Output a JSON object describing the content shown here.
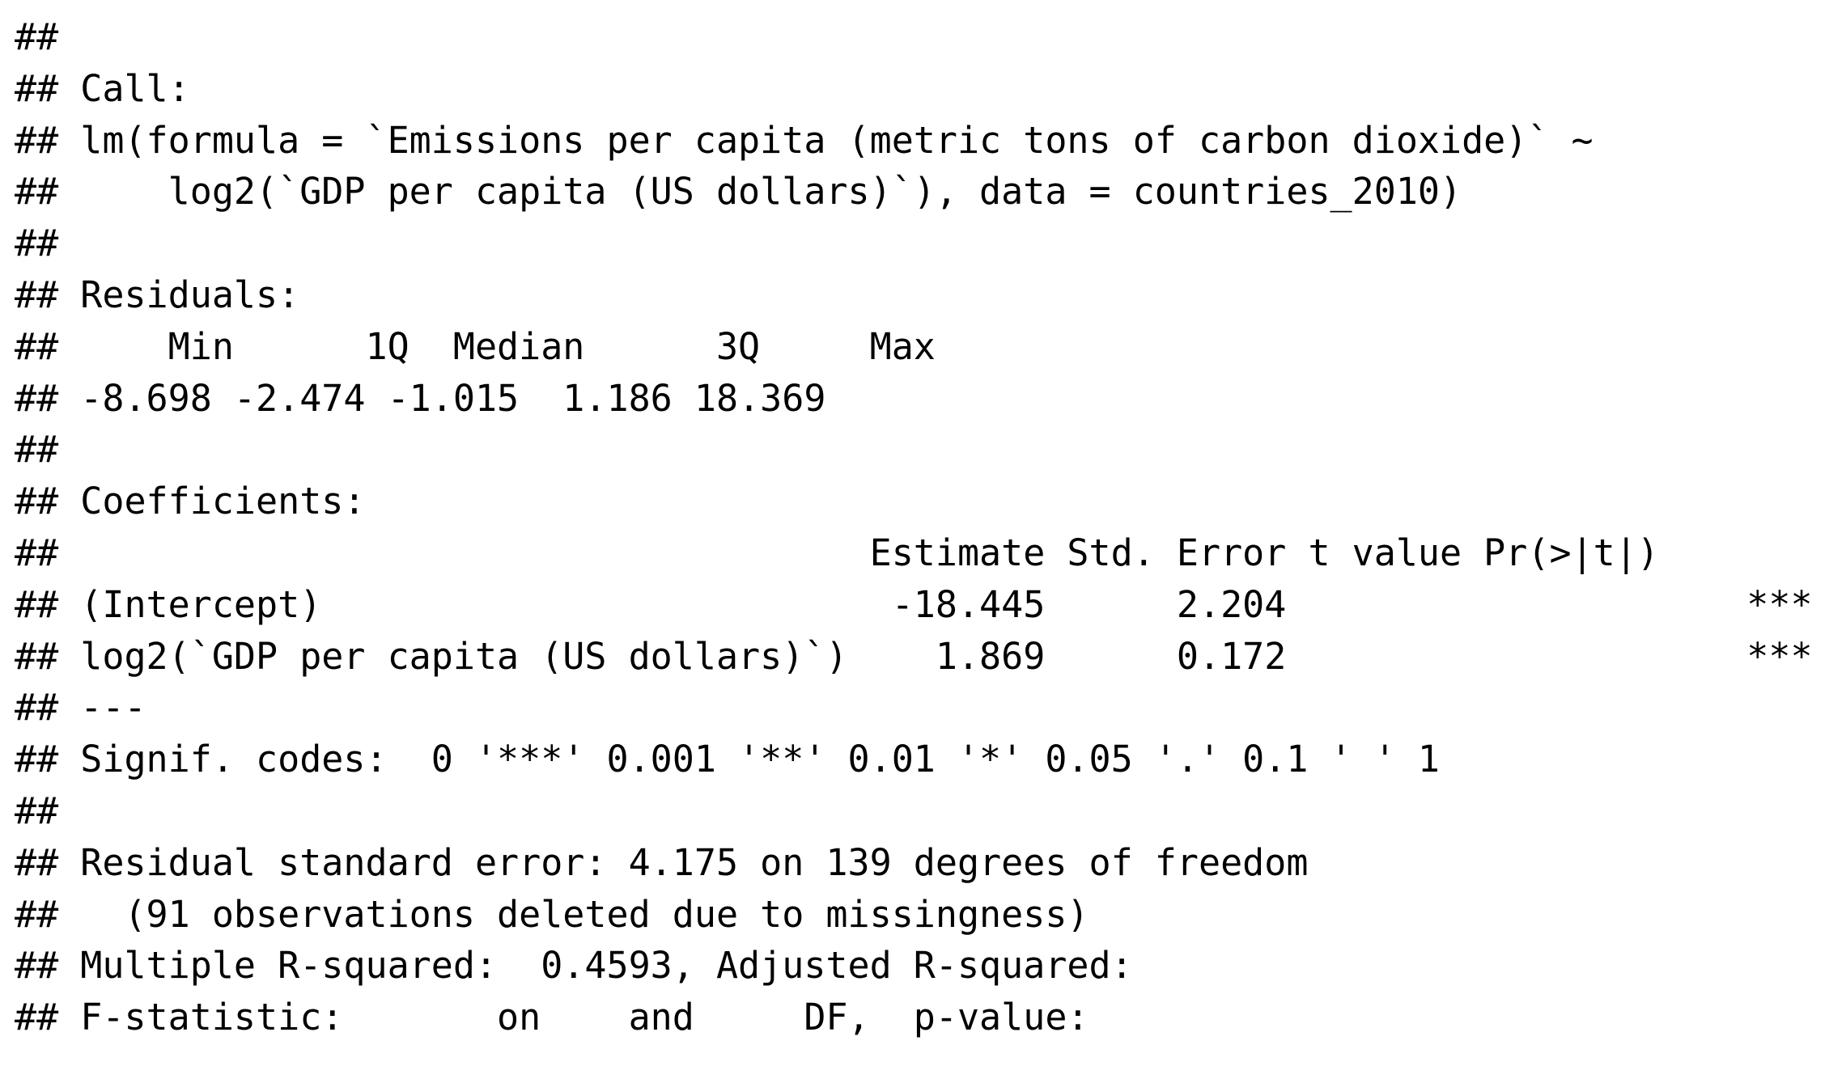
{
  "lines": [
    "##",
    "## Call:",
    "## lm(formula = `Emissions per capita (metric tons of carbon dioxide)` ~",
    "##     log2(`GDP per capita (US dollars)`), data = countries_2010)",
    "##",
    "## Residuals:",
    "##     Min      1Q  Median      3Q     Max",
    "## -8.698 -2.474 -1.015  1.186 18.369",
    "##",
    "## Coefficients:",
    "##                                     Estimate Std. Error t value Pr(>|t|)",
    "## (Intercept)                          -18.445      2.204                     ***",
    "## log2(`GDP per capita (US dollars)`)    1.869      0.172                     ***",
    "## ---",
    "## Signif. codes:  0 '***' 0.001 '**' 0.01 '*' 0.05 '.' 0.1 ' ' 1",
    "##",
    "## Residual standard error: 4.175 on 139 degrees of freedom",
    "##   (91 observations deleted due to missingness)",
    "## Multiple R-squared:  0.4593, Adjusted R-squared:",
    "## F-statistic:       on    and     DF,  p-value:"
  ]
}
